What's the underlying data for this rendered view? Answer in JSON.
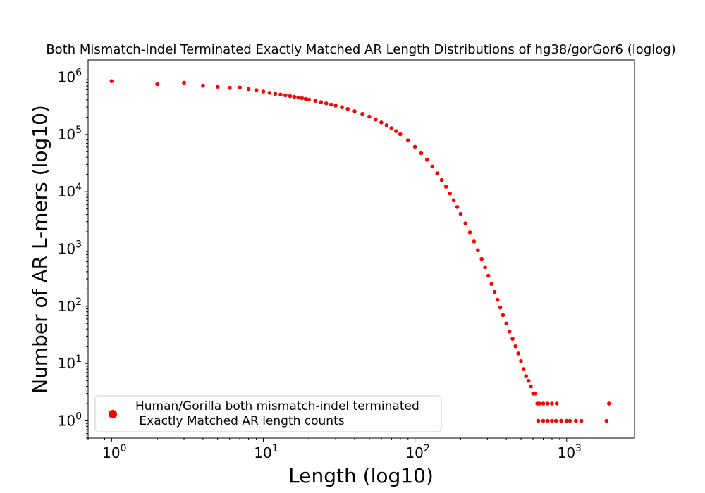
{
  "chart_data": {
    "type": "scatter",
    "title": "Both Mismatch-Indel Terminated Exactly Matched AR Length Distributions of hg38/gorGor6 (loglog)",
    "xlabel": "Length (log10)",
    "ylabel": "Number of AR L-mers (log10)",
    "x_scale": "log",
    "y_scale": "log",
    "xlim": [
      0.7,
      2800
    ],
    "ylim": [
      0.5,
      2000000
    ],
    "x_ticks": [
      {
        "base": "10",
        "exp": "0",
        "value": 1
      },
      {
        "base": "10",
        "exp": "1",
        "value": 10
      },
      {
        "base": "10",
        "exp": "2",
        "value": 100
      },
      {
        "base": "10",
        "exp": "3",
        "value": 1000
      }
    ],
    "y_ticks": [
      {
        "base": "10",
        "exp": "0",
        "value": 1
      },
      {
        "base": "10",
        "exp": "1",
        "value": 10
      },
      {
        "base": "10",
        "exp": "2",
        "value": 100
      },
      {
        "base": "10",
        "exp": "3",
        "value": 1000
      },
      {
        "base": "10",
        "exp": "4",
        "value": 10000
      },
      {
        "base": "10",
        "exp": "5",
        "value": 100000
      },
      {
        "base": "10",
        "exp": "6",
        "value": 1000000
      }
    ],
    "grid": false,
    "legend_position": "lower-left",
    "series": [
      {
        "name": "Human/Gorilla both mismatch-indel terminated\n Exactly Matched AR length counts",
        "color": "#ff0000",
        "marker": "circle",
        "points": [
          [
            1,
            850000
          ],
          [
            2,
            750000
          ],
          [
            3,
            800000
          ],
          [
            4,
            710000
          ],
          [
            5,
            680000
          ],
          [
            6,
            650000
          ],
          [
            7,
            660000
          ],
          [
            8,
            620000
          ],
          [
            9,
            590000
          ],
          [
            10,
            560000
          ],
          [
            11,
            530000
          ],
          [
            12,
            510000
          ],
          [
            13,
            495000
          ],
          [
            14,
            480000
          ],
          [
            15,
            465000
          ],
          [
            16,
            452000
          ],
          [
            17,
            440000
          ],
          [
            18,
            428000
          ],
          [
            19,
            416000
          ],
          [
            20,
            405000
          ],
          [
            22,
            385000
          ],
          [
            24,
            366000
          ],
          [
            26,
            348000
          ],
          [
            28,
            332000
          ],
          [
            30,
            318000
          ],
          [
            33,
            298000
          ],
          [
            36,
            278000
          ],
          [
            40,
            255000
          ],
          [
            45,
            228000
          ],
          [
            50,
            204000
          ],
          [
            55,
            182000
          ],
          [
            60,
            162000
          ],
          [
            65,
            144000
          ],
          [
            70,
            128000
          ],
          [
            75,
            114000
          ],
          [
            80,
            101000
          ],
          [
            90,
            79000
          ],
          [
            100,
            61000
          ],
          [
            110,
            47000
          ],
          [
            120,
            36000
          ],
          [
            130,
            27500
          ],
          [
            140,
            21000
          ],
          [
            150,
            16000
          ],
          [
            160,
            12200
          ],
          [
            170,
            9300
          ],
          [
            180,
            7100
          ],
          [
            190,
            5400
          ],
          [
            200,
            4100
          ],
          [
            215,
            2800
          ],
          [
            230,
            1950
          ],
          [
            245,
            1350
          ],
          [
            260,
            950
          ],
          [
            275,
            670
          ],
          [
            290,
            480
          ],
          [
            305,
            340
          ],
          [
            320,
            245
          ],
          [
            335,
            178
          ],
          [
            350,
            130
          ],
          [
            365,
            95
          ],
          [
            380,
            70
          ],
          [
            400,
            50
          ],
          [
            420,
            36
          ],
          [
            440,
            27
          ],
          [
            460,
            20
          ],
          [
            480,
            15
          ],
          [
            500,
            11
          ],
          [
            520,
            8
          ],
          [
            540,
            6
          ],
          [
            560,
            5
          ],
          [
            580,
            4
          ],
          [
            600,
            3
          ],
          [
            620,
            3
          ],
          [
            640,
            2
          ],
          [
            660,
            2
          ],
          [
            700,
            2
          ],
          [
            750,
            2
          ],
          [
            800,
            2
          ],
          [
            860,
            2
          ],
          [
            650,
            1
          ],
          [
            700,
            1
          ],
          [
            750,
            1
          ],
          [
            800,
            1
          ],
          [
            850,
            1
          ],
          [
            920,
            1
          ],
          [
            1000,
            1
          ],
          [
            1050,
            1
          ],
          [
            1150,
            1
          ],
          [
            1250,
            1
          ],
          [
            1830,
            1
          ],
          [
            1900,
            2
          ]
        ]
      }
    ]
  }
}
